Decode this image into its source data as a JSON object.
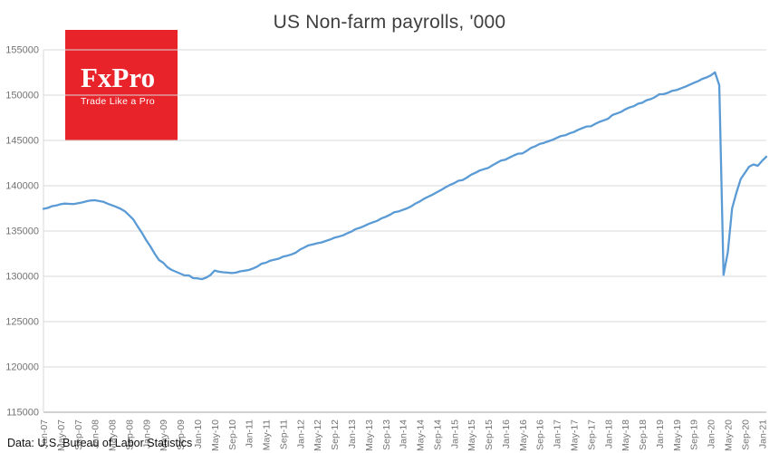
{
  "header": {
    "title": "US Non-farm payrolls, '000"
  },
  "logo": {
    "brand": "FxPro",
    "tagline": "Trade Like a Pro",
    "bg_color": "#e8232a",
    "text_color": "#ffffff"
  },
  "footer": {
    "source": "Data: U.S. Bureau of Labor Statistics"
  },
  "chart_data": {
    "type": "line",
    "title": "US Non-farm payrolls, '000",
    "xlabel": "",
    "ylabel": "",
    "ylim": [
      115000,
      155000
    ],
    "y_tick_step": 5000,
    "grid": true,
    "legend": "none",
    "line_color": "#5b9bd5",
    "grid_color": "#d9d9d9",
    "axis_color": "#a6a6a6",
    "tick_label_color": "#737373",
    "frequency": "monthly",
    "x_tick_every": 4,
    "x_tick_labels": [
      "Jan-07",
      "May-07",
      "Sep-07",
      "Jan-08",
      "May-08",
      "Sep-08",
      "Jan-09",
      "May-09",
      "Sep-09",
      "Jan-10",
      "May-10",
      "Sep-10",
      "Jan-11",
      "May-11",
      "Sep-11",
      "Jan-12",
      "May-12",
      "Sep-12",
      "Jan-13",
      "May-13",
      "Sep-13",
      "Jan-14",
      "May-14",
      "Sep-14",
      "Jan-15",
      "May-15",
      "Sep-15",
      "Jan-16",
      "May-16",
      "Sep-16",
      "Jan-17",
      "May-17",
      "Sep-17",
      "Jan-18",
      "May-18",
      "Sep-18",
      "Jan-19",
      "May-19",
      "Sep-19",
      "Jan-20",
      "May-20",
      "Sep-20",
      "Jan-21"
    ],
    "values": [
      137450,
      137550,
      137740,
      137820,
      137960,
      138030,
      138000,
      137980,
      138060,
      138150,
      138270,
      138370,
      138400,
      138310,
      138230,
      138020,
      137840,
      137670,
      137460,
      137190,
      136740,
      136280,
      135520,
      134820,
      134000,
      133300,
      132500,
      131800,
      131500,
      131000,
      130700,
      130500,
      130300,
      130100,
      130100,
      129800,
      129780,
      129690,
      129850,
      130120,
      130640,
      130510,
      130450,
      130410,
      130360,
      130410,
      130550,
      130620,
      130700,
      130870,
      131080,
      131400,
      131500,
      131730,
      131840,
      131950,
      132170,
      132280,
      132420,
      132620,
      132960,
      133190,
      133430,
      133530,
      133650,
      133740,
      133900,
      134060,
      134260,
      134380,
      134520,
      134740,
      134940,
      135220,
      135360,
      135560,
      135780,
      135960,
      136120,
      136390,
      136570,
      136790,
      137070,
      137160,
      137330,
      137500,
      137730,
      138040,
      138270,
      138570,
      138800,
      139020,
      139290,
      139540,
      139820,
      140080,
      140280,
      140550,
      140630,
      140900,
      141220,
      141430,
      141680,
      141830,
      141970,
      142260,
      142520,
      142790,
      142880,
      143120,
      143350,
      143540,
      143570,
      143860,
      144180,
      144360,
      144610,
      144730,
      144900,
      145060,
      145280,
      145490,
      145570,
      145780,
      145930,
      146170,
      146360,
      146540,
      146560,
      146830,
      147050,
      147220,
      147390,
      147800,
      147970,
      148140,
      148420,
      148640,
      148780,
      149050,
      149160,
      149440,
      149560,
      149790,
      150100,
      150110,
      150260,
      150480,
      150560,
      150740,
      150920,
      151130,
      151340,
      151530,
      151790,
      151950,
      152170,
      152520,
      151090,
      130160,
      132670,
      137500,
      139220,
      140720,
      141430,
      142110,
      142350,
      142200,
      142740,
      143200
    ]
  }
}
